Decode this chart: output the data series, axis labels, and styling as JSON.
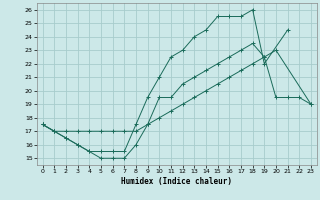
{
  "bg_color": "#cce8e8",
  "grid_color": "#a8cccc",
  "line_color": "#1a6b5a",
  "xlabel": "Humidex (Indice chaleur)",
  "ylim": [
    14.5,
    26.5
  ],
  "xlim": [
    -0.5,
    23.5
  ],
  "yticks": [
    15,
    16,
    17,
    18,
    19,
    20,
    21,
    22,
    23,
    24,
    25,
    26
  ],
  "xticks": [
    0,
    1,
    2,
    3,
    4,
    5,
    6,
    7,
    8,
    9,
    10,
    11,
    12,
    13,
    14,
    15,
    16,
    17,
    18,
    19,
    20,
    21,
    22,
    23
  ],
  "line1_x": [
    0,
    1,
    2,
    3,
    4,
    5,
    6,
    7,
    8,
    9,
    10,
    11,
    12,
    13,
    14,
    15,
    16,
    17,
    18,
    19,
    20,
    21,
    22,
    23
  ],
  "line1_y": [
    17.5,
    17.0,
    16.5,
    16.0,
    15.5,
    15.0,
    15.0,
    15.0,
    16.0,
    17.5,
    19.5,
    19.5,
    20.5,
    21.0,
    21.5,
    22.0,
    22.5,
    23.0,
    23.5,
    22.5,
    19.5,
    19.5,
    19.5,
    19.0
  ],
  "line2_x": [
    0,
    1,
    2,
    3,
    4,
    5,
    6,
    7,
    8,
    9,
    10,
    11,
    12,
    13,
    14,
    15,
    16,
    17,
    18,
    19,
    20,
    21,
    22,
    23
  ],
  "line2_y": [
    17.5,
    17.0,
    16.5,
    16.0,
    15.5,
    15.5,
    15.5,
    15.5,
    17.5,
    19.5,
    21.0,
    22.5,
    23.0,
    24.0,
    24.5,
    25.5,
    25.5,
    25.5,
    26.0,
    22.0,
    null,
    24.5,
    null,
    null
  ],
  "line3_x": [
    0,
    1,
    2,
    3,
    4,
    5,
    6,
    7,
    8,
    9,
    10,
    11,
    12,
    13,
    14,
    15,
    16,
    17,
    18,
    19,
    20,
    21,
    22,
    23
  ],
  "line3_y": [
    17.5,
    17.0,
    17.0,
    17.0,
    17.0,
    17.0,
    17.0,
    17.0,
    17.0,
    17.5,
    18.0,
    18.5,
    19.0,
    19.5,
    20.0,
    20.5,
    21.0,
    21.5,
    22.0,
    22.5,
    23.0,
    null,
    null,
    19.0
  ]
}
